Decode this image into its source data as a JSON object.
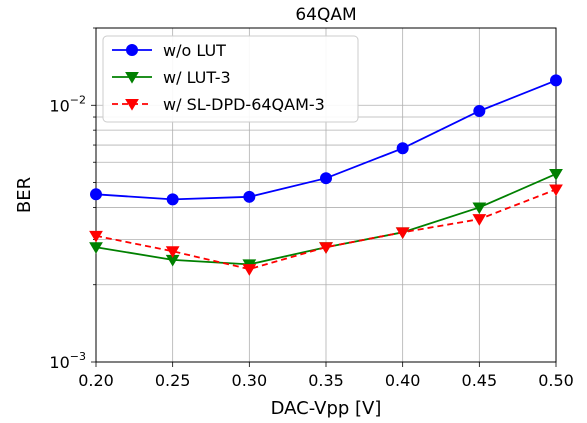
{
  "chart_data": {
    "type": "line",
    "title": "64QAM",
    "xlabel": "DAC-Vpp [V]",
    "ylabel": "BER",
    "xlim": [
      0.2,
      0.5
    ],
    "ylim": [
      0.001,
      0.02
    ],
    "yscale": "log",
    "grid": true,
    "legend_position": "top-left",
    "x": [
      0.2,
      0.25,
      0.3,
      0.35,
      0.4,
      0.45,
      0.5
    ],
    "x_ticks": [
      "0.20",
      "0.25",
      "0.30",
      "0.35",
      "0.40",
      "0.45",
      "0.50"
    ],
    "y_tick_labels": [
      {
        "base": "10",
        "exp": "−2",
        "value": 0.01
      },
      {
        "base": "10",
        "exp": "−3",
        "value": 0.001
      }
    ],
    "series": [
      {
        "name": "w/o LUT",
        "color": "#0000ff",
        "marker": "circle",
        "linestyle": "solid",
        "values": [
          0.0045,
          0.0043,
          0.0044,
          0.0052,
          0.0068,
          0.0095,
          0.0125
        ]
      },
      {
        "name": "w/ LUT-3",
        "color": "#008000",
        "marker": "triangle-down",
        "linestyle": "solid",
        "values": [
          0.0028,
          0.0025,
          0.0024,
          0.0028,
          0.0032,
          0.004,
          0.0054
        ]
      },
      {
        "name": "w/ SL-DPD-64QAM-3",
        "color": "#ff0000",
        "marker": "triangle-down",
        "linestyle": "dashed",
        "values": [
          0.0031,
          0.0027,
          0.0023,
          0.0028,
          0.0032,
          0.0036,
          0.0047
        ]
      }
    ]
  }
}
